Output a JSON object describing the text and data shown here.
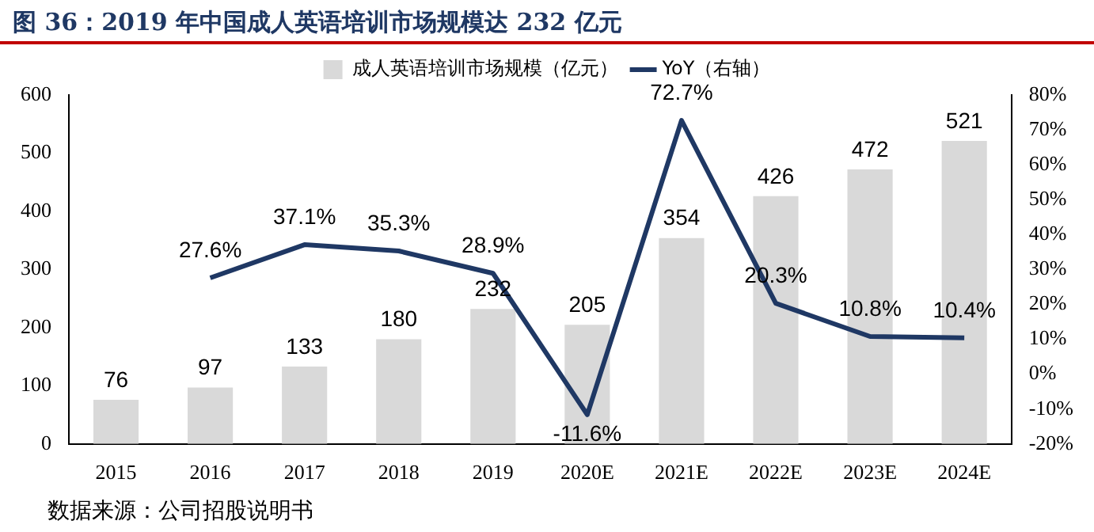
{
  "chart_data": {
    "type": "bar",
    "title": "图 36：2019 年中国成人英语培训市场规模达 232 亿元",
    "categories": [
      "2015",
      "2016",
      "2017",
      "2018",
      "2019",
      "2020E",
      "2021E",
      "2022E",
      "2023E",
      "2024E"
    ],
    "series": [
      {
        "name": "成人英语培训市场规模（亿元）",
        "color": "#d9d9d9",
        "values": [
          76,
          97,
          133,
          180,
          232,
          205,
          354,
          426,
          472,
          521
        ],
        "value_labels": [
          "76",
          "97",
          "133",
          "180",
          "232",
          "205",
          "354",
          "426",
          "472",
          "521"
        ]
      },
      {
        "name": "YoY（右轴）",
        "type": "line",
        "axis": "y2",
        "color": "#1f3864",
        "values": [
          null,
          27.6,
          37.1,
          35.3,
          28.9,
          -11.6,
          72.7,
          20.3,
          10.8,
          10.4
        ],
        "value_labels": [
          null,
          "27.6%",
          "37.1%",
          "35.3%",
          "28.9%",
          "-11.6%",
          "72.7%",
          "20.3%",
          "10.8%",
          "10.4%"
        ]
      }
    ],
    "ylim": [
      0,
      600
    ],
    "yticks": [
      0,
      100,
      200,
      300,
      400,
      500,
      600
    ],
    "y2lim": [
      -20,
      80
    ],
    "y2ticks": [
      {
        "value": -20,
        "label": "-20%"
      },
      {
        "value": -10,
        "label": "-10%"
      },
      {
        "value": 0,
        "label": "0%"
      },
      {
        "value": 10,
        "label": "10%"
      },
      {
        "value": 20,
        "label": "20%"
      },
      {
        "value": 30,
        "label": "30%"
      },
      {
        "value": 40,
        "label": "40%"
      },
      {
        "value": 50,
        "label": "50%"
      },
      {
        "value": 60,
        "label": "60%"
      },
      {
        "value": 70,
        "label": "70%"
      },
      {
        "value": 80,
        "label": "80%"
      }
    ],
    "grid": false,
    "legend": "top",
    "marker": "none",
    "line_style": "solid",
    "annotations": [
      "数据来源：公司招股说明书"
    ]
  }
}
